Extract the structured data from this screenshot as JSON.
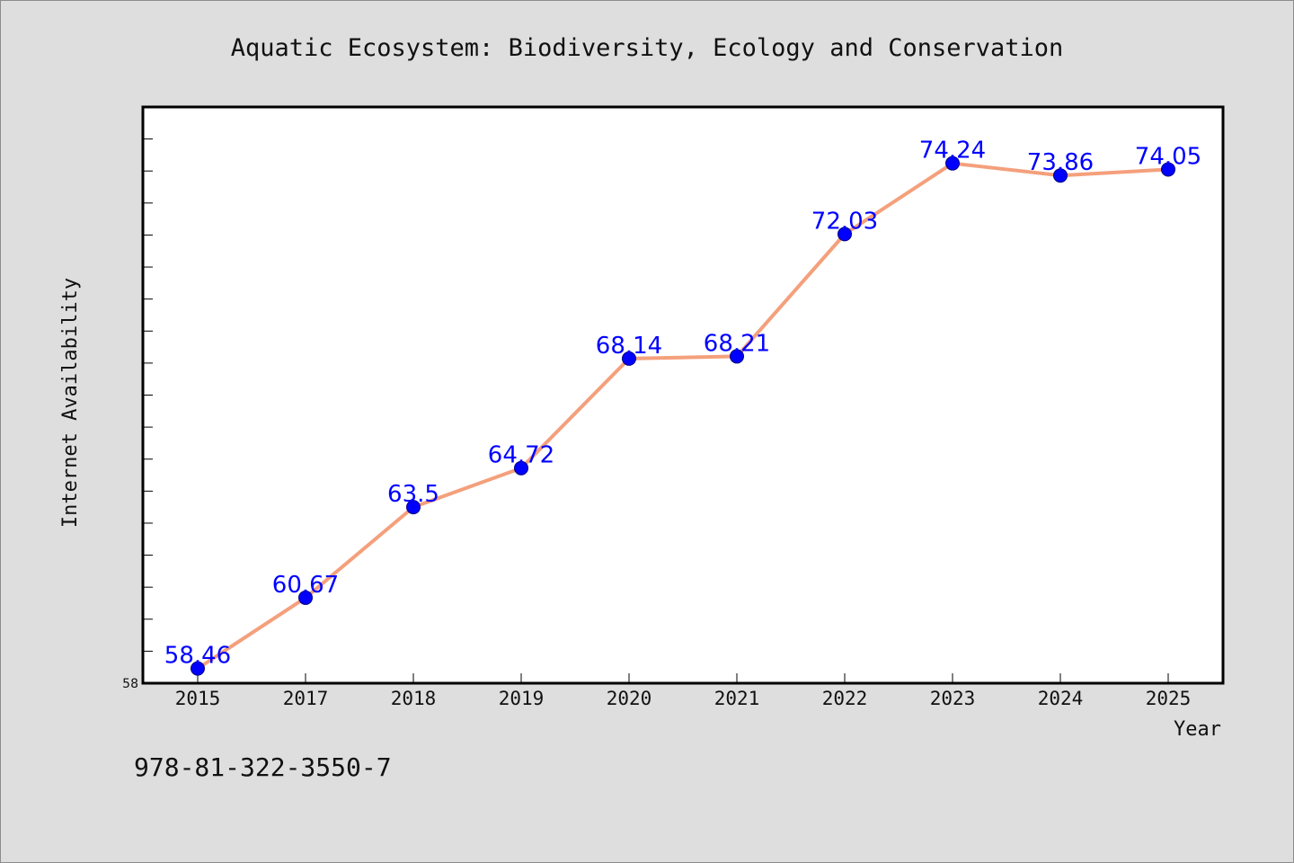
{
  "chart_data": {
    "type": "line",
    "title": "Aquatic Ecosystem: Biodiversity, Ecology and Conservation",
    "xlabel": "Year",
    "ylabel": "Internet Availability",
    "categories": [
      "2015",
      "2017",
      "2018",
      "2019",
      "2020",
      "2021",
      "2022",
      "2023",
      "2024",
      "2025"
    ],
    "series": [
      {
        "values": [
          58.46,
          60.67,
          63.5,
          64.72,
          68.14,
          68.21,
          72.03,
          74.24,
          73.86,
          74.05
        ],
        "value_labels": [
          "58.46",
          "60.67",
          "63.5",
          "64.72",
          "68.14",
          "68.21",
          "72.03",
          "74.24",
          "73.86",
          "74.05"
        ],
        "line_color": "#f4a07c",
        "marker_color": "#0000ff"
      }
    ],
    "ylim": [
      58,
      76
    ],
    "yticks": [
      58
    ],
    "y_minor_step": 1,
    "grid": false,
    "legend": "none"
  },
  "footer": {
    "isbn": "978-81-322-3550-7"
  },
  "colors": {
    "background": "#dedede",
    "plot_background": "#ffffff",
    "text": "#111111",
    "label_color": "#0000ff"
  }
}
